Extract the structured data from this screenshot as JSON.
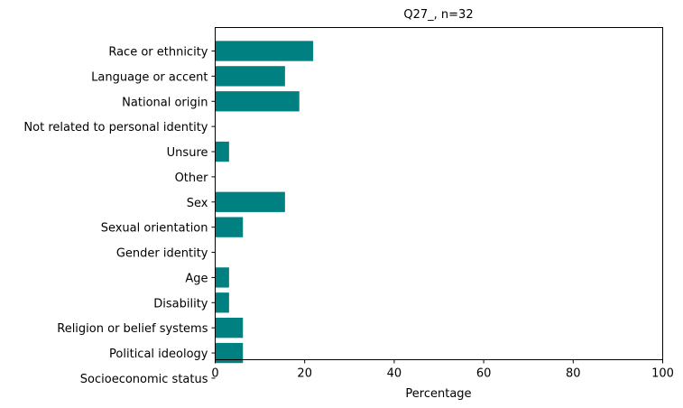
{
  "chart_data": {
    "type": "bar",
    "orientation": "horizontal",
    "title": "Q27_, n=32",
    "xlabel": "Percentage",
    "ylabel": "",
    "xlim": [
      0,
      100
    ],
    "xticks": [
      "0",
      "20",
      "40",
      "60",
      "80",
      "100"
    ],
    "categories": [
      "Race or ethnicity",
      "Language or accent",
      "National origin",
      "Not related to personal identity",
      "Unsure",
      "Other",
      "Sex",
      "Sexual orientation",
      "Gender identity",
      "Age",
      "Disability",
      "Religion or belief systems",
      "Political ideology",
      "Socioeconomic status"
    ],
    "values": [
      21.9,
      15.6,
      18.8,
      0,
      3.1,
      0,
      15.6,
      6.2,
      0,
      3.1,
      3.1,
      6.2,
      6.2,
      0
    ],
    "bar_color": "#008080",
    "grid": false,
    "legend": "none"
  }
}
